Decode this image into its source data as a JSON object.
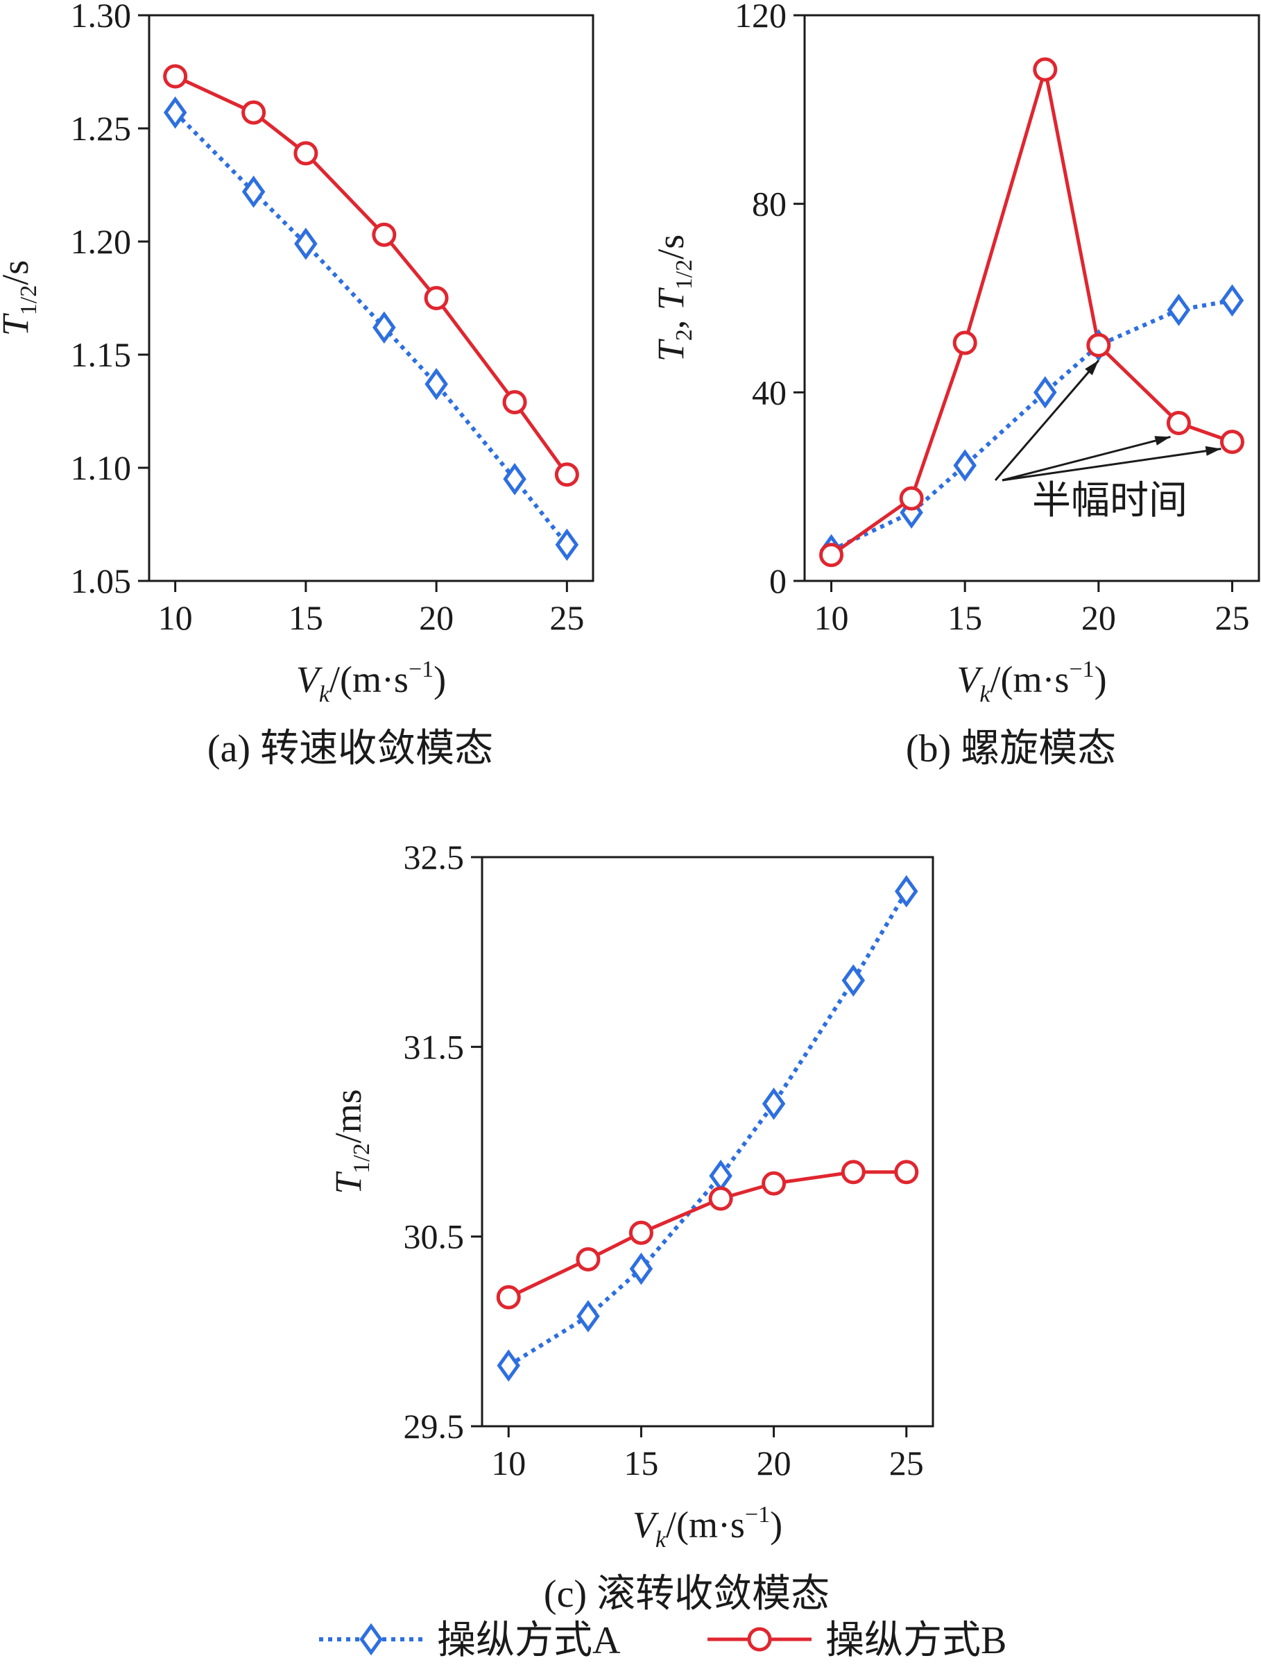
{
  "chart_data": [
    {
      "id": "a",
      "type": "line",
      "caption": "(a) 转速收敛模态",
      "ylabel": {
        "main": "T",
        "sub": "1/2",
        "unit": "/s"
      },
      "xlabel": {
        "main": "V",
        "sub": "k",
        "unit": "/(m·s",
        "sup": "−1",
        "close": ")"
      },
      "xlim": [
        9,
        26
      ],
      "ylim": [
        1.05,
        1.3
      ],
      "xticks": [
        10,
        15,
        20,
        25
      ],
      "yticks": [
        1.05,
        1.1,
        1.15,
        1.2,
        1.25,
        1.3
      ],
      "ytick_labels": [
        "1.05",
        "1.10",
        "1.15",
        "1.20",
        "1.25",
        "1.30"
      ],
      "series": [
        {
          "key": "A",
          "x": [
            10,
            13,
            15,
            18,
            20,
            23,
            25
          ],
          "values": [
            1.257,
            1.222,
            1.199,
            1.162,
            1.137,
            1.095,
            1.066
          ]
        },
        {
          "key": "B",
          "x": [
            10,
            13,
            15,
            18,
            20,
            23,
            25
          ],
          "values": [
            1.273,
            1.257,
            1.239,
            1.203,
            1.175,
            1.129,
            1.097
          ]
        }
      ]
    },
    {
      "id": "b",
      "type": "line",
      "caption": "(b) 螺旋模态",
      "ylabel": {
        "main1": "T",
        "sub1": "2",
        "sep": ", ",
        "main2": "T",
        "sub2": "1/2",
        "unit": "/s"
      },
      "xlabel": {
        "main": "V",
        "sub": "k",
        "unit": "/(m·s",
        "sup": "−1",
        "close": ")"
      },
      "xlim": [
        9,
        26
      ],
      "ylim": [
        0,
        120
      ],
      "xticks": [
        10,
        15,
        20,
        25
      ],
      "yticks": [
        0,
        40,
        80,
        120
      ],
      "ytick_labels": [
        "0",
        "40",
        "80",
        "120"
      ],
      "annotation": "半幅时间",
      "series": [
        {
          "key": "A",
          "x": [
            10,
            13,
            15,
            18,
            20,
            23,
            25
          ],
          "values": [
            6.5,
            14.5,
            24.5,
            40,
            50,
            57.5,
            59.5
          ]
        },
        {
          "key": "B",
          "x": [
            10,
            13,
            15,
            18,
            20,
            23,
            25
          ],
          "values": [
            5.5,
            17.5,
            50.5,
            108.5,
            50,
            33.5,
            29.5
          ]
        }
      ]
    },
    {
      "id": "c",
      "type": "line",
      "caption": "(c) 滚转收敛模态",
      "ylabel": {
        "main": "T",
        "sub": "1/2",
        "unit": "/ms"
      },
      "xlabel": {
        "main": "V",
        "sub": "k",
        "unit": "/(m·s",
        "sup": "−1",
        "close": ")"
      },
      "xlim": [
        9,
        26
      ],
      "ylim": [
        29.5,
        32.5
      ],
      "xticks": [
        10,
        15,
        20,
        25
      ],
      "yticks": [
        29.5,
        30.5,
        31.5,
        32.5
      ],
      "ytick_labels": [
        "29.5",
        "30.5",
        "31.5",
        "32.5"
      ],
      "series": [
        {
          "key": "A",
          "x": [
            10,
            13,
            15,
            18,
            20,
            23,
            25
          ],
          "values": [
            29.82,
            30.08,
            30.33,
            30.82,
            31.2,
            31.85,
            32.32
          ]
        },
        {
          "key": "B",
          "x": [
            10,
            13,
            15,
            18,
            20,
            23,
            25
          ],
          "values": [
            30.18,
            30.38,
            30.52,
            30.7,
            30.78,
            30.84,
            30.84
          ]
        }
      ]
    }
  ],
  "legend": {
    "position": "bottom",
    "items": [
      {
        "key": "A",
        "label": "操纵方式A",
        "color": "#2e6fe0",
        "marker": "diamond",
        "linestyle": "dotted"
      },
      {
        "key": "B",
        "label": "操纵方式B",
        "color": "#e0262f",
        "marker": "circle",
        "linestyle": "solid"
      }
    ]
  }
}
